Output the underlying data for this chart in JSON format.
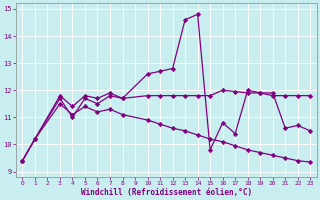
{
  "background_color": "#c8eef0",
  "grid_color": "#ffffff",
  "line_color": "#800080",
  "marker_color": "#800080",
  "xlabel": "Windchill (Refroidissement éolien,°C)",
  "xlabel_color": "#800080",
  "tick_color": "#800080",
  "xlim_min": -0.5,
  "xlim_max": 23.5,
  "ylim_min": 8.8,
  "ylim_max": 15.2,
  "yticks": [
    9,
    10,
    11,
    12,
    13,
    14,
    15
  ],
  "xticks": [
    0,
    1,
    2,
    3,
    4,
    5,
    6,
    7,
    8,
    9,
    10,
    11,
    12,
    13,
    14,
    15,
    16,
    17,
    18,
    19,
    20,
    21,
    22,
    23
  ],
  "series1_x": [
    0,
    1,
    3,
    4,
    5,
    6,
    7,
    8,
    10,
    11,
    12,
    13,
    14,
    15,
    16,
    17,
    18,
    19,
    20,
    21,
    22,
    23
  ],
  "series1_y": [
    9.4,
    10.2,
    11.7,
    11.0,
    11.7,
    11.5,
    11.8,
    11.7,
    12.6,
    12.7,
    12.8,
    14.6,
    14.8,
    9.8,
    10.8,
    10.4,
    12.0,
    11.9,
    11.9,
    10.6,
    10.7,
    10.5
  ],
  "series2_x": [
    0,
    1,
    3,
    4,
    5,
    6,
    7,
    8,
    10,
    11,
    12,
    13,
    14,
    15,
    16,
    17,
    18,
    19,
    20,
    21,
    22,
    23
  ],
  "series2_y": [
    9.4,
    10.2,
    11.8,
    11.4,
    11.8,
    11.7,
    11.9,
    11.7,
    11.8,
    11.8,
    11.8,
    11.8,
    11.8,
    11.8,
    12.0,
    11.95,
    11.9,
    11.9,
    11.8,
    11.8,
    11.8,
    11.8
  ],
  "series3_x": [
    0,
    1,
    3,
    4,
    5,
    6,
    7,
    8,
    10,
    11,
    12,
    13,
    14,
    15,
    16,
    17,
    18,
    19,
    20,
    21,
    22,
    23
  ],
  "series3_y": [
    9.4,
    10.2,
    11.5,
    11.1,
    11.4,
    11.2,
    11.3,
    11.1,
    10.9,
    10.75,
    10.6,
    10.5,
    10.35,
    10.2,
    10.1,
    9.95,
    9.8,
    9.7,
    9.6,
    9.5,
    9.4,
    9.35
  ]
}
